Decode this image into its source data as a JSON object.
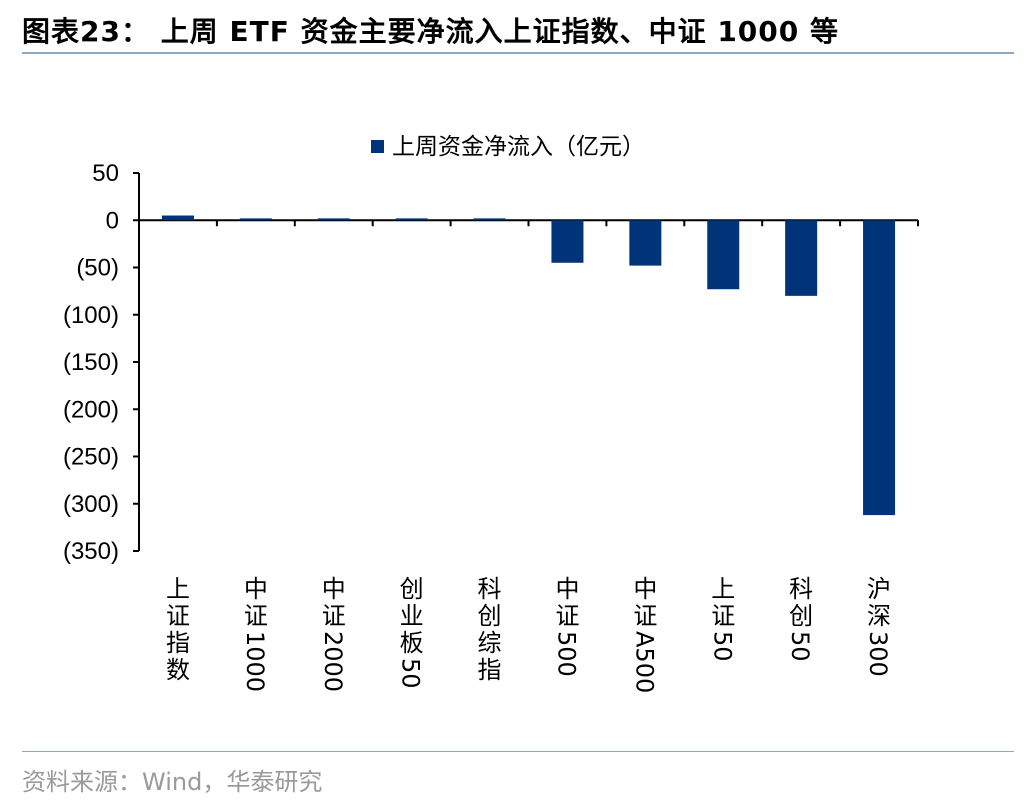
{
  "header": {
    "title": "图表23：  上周 ETF 资金主要净流入上证指数、中证 1000 等"
  },
  "footer": {
    "source": "资料来源：Wind，华泰研究"
  },
  "colors": {
    "bar": "#003478",
    "rule": "#8fa6c7",
    "axis": "#000000"
  },
  "chart_data": {
    "type": "bar",
    "legend": {
      "label": "上周资金净流入（亿元）",
      "position": "top"
    },
    "categories": [
      "上证指数",
      "中证1000",
      "中证2000",
      "创业板50",
      "科创综指",
      "中证500",
      "中证A500",
      "上证50",
      "科创50",
      "沪深300"
    ],
    "series": [
      {
        "name": "上周资金净流入（亿元）",
        "values": [
          5,
          2,
          2,
          2,
          2,
          -45,
          -48,
          -73,
          -80,
          -312
        ]
      }
    ],
    "ylim": [
      -350,
      50
    ],
    "yticks": [
      50,
      0,
      -50,
      -100,
      -150,
      -200,
      -250,
      -300,
      -350
    ],
    "ytick_labels": [
      "50",
      "0",
      "(50)",
      "(100)",
      "(150)",
      "(200)",
      "(250)",
      "(300)",
      "(350)"
    ],
    "grid": false
  }
}
